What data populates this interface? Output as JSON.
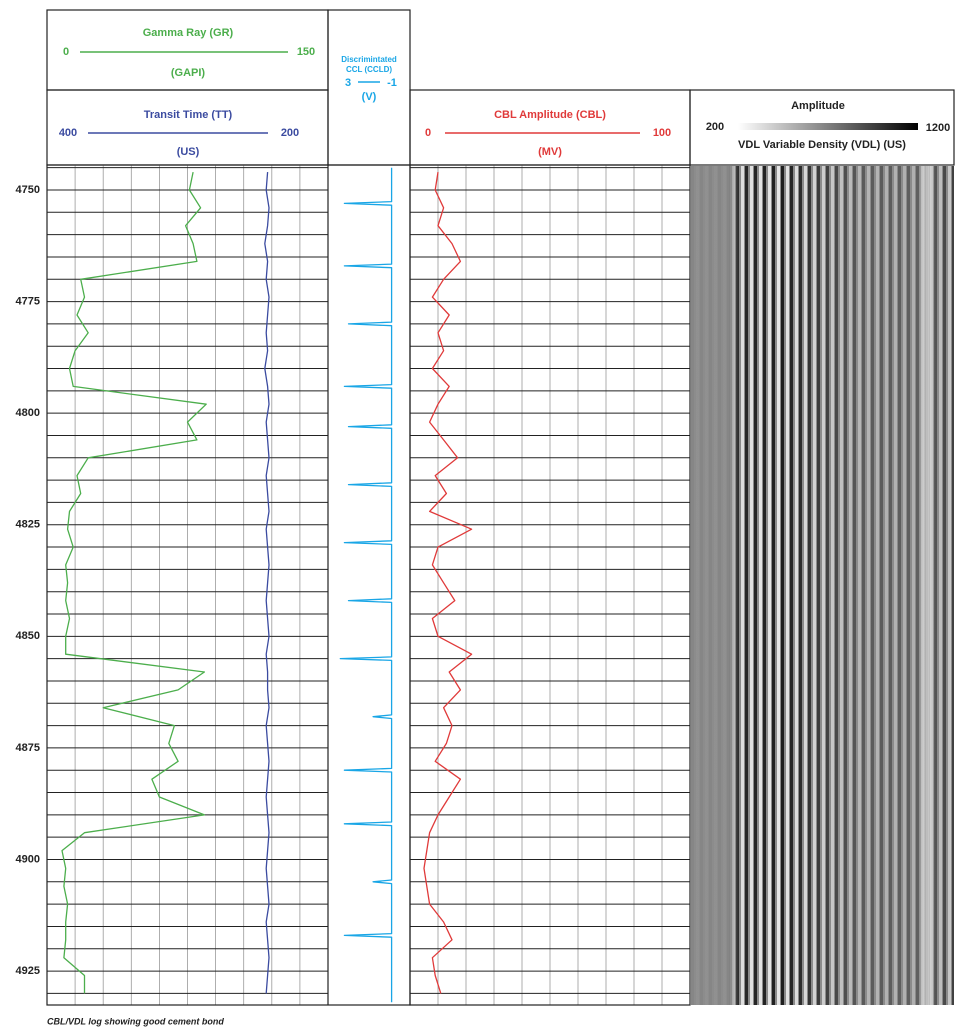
{
  "chart_data": {
    "type": "well_log",
    "caption": "CBL/VDL log showing good cement bond",
    "depth": [
      4746,
      4750,
      4754,
      4758,
      4762,
      4766,
      4770,
      4774,
      4778,
      4782,
      4786,
      4790,
      4794,
      4798,
      4802,
      4806,
      4810,
      4814,
      4818,
      4822,
      4826,
      4830,
      4834,
      4838,
      4842,
      4846,
      4850,
      4854,
      4858,
      4862,
      4866,
      4870,
      4874,
      4878,
      4882,
      4886,
      4890,
      4894,
      4898,
      4902,
      4906,
      4910,
      4914,
      4918,
      4922,
      4926,
      4930
    ],
    "ylim": [
      4744.4,
      4932.6
    ],
    "yticks": [
      4750,
      4775,
      4800,
      4825,
      4850,
      4875,
      4900,
      4925
    ],
    "ygrid": [
      4745,
      4750,
      4755,
      4760,
      4765,
      4770,
      4775,
      4780,
      4785,
      4790,
      4795,
      4800,
      4805,
      4810,
      4815,
      4820,
      4825,
      4830,
      4835,
      4840,
      4845,
      4850,
      4855,
      4860,
      4865,
      4870,
      4875,
      4880,
      4885,
      4890,
      4895,
      4900,
      4905,
      4910,
      4915,
      4920,
      4925,
      4930
    ],
    "tracks": [
      {
        "xticks": [
          0,
          15,
          30,
          45,
          60,
          75,
          90,
          105,
          120,
          135,
          150
        ],
        "curves": [
          {
            "name": "Gamma Ray (GR)",
            "unit": "(GAPI)",
            "color": "#4cae4c",
            "xlim": [
              0,
              150
            ],
            "values": [
              78,
              76,
              82,
              74,
              78,
              80,
              18,
              20,
              16,
              22,
              15,
              12,
              14,
              85,
              75,
              80,
              22,
              16,
              18,
              12,
              11,
              14,
              10,
              11,
              10,
              12,
              10,
              10,
              84,
              70,
              30,
              68,
              65,
              70,
              56,
              60,
              84,
              20,
              8,
              10,
              9,
              11,
              10,
              10,
              9,
              20,
              20
            ]
          },
          {
            "name": "Transit Time (TT)",
            "unit": "(US)",
            "color": "#3b4ba0",
            "xlim": [
              400,
              200
            ],
            "values": [
              243,
              244,
              242,
              243,
              245,
              243,
              244,
              242,
              243,
              244,
              243,
              245,
              243,
              242,
              244,
              243,
              242,
              244,
              243,
              242,
              244,
              243,
              242,
              243,
              244,
              243,
              242,
              244,
              243,
              243,
              242,
              244,
              243,
              242,
              243,
              244,
              243,
              242,
              243,
              244,
              243,
              242,
              244,
              243,
              242,
              243,
              244
            ]
          }
        ]
      },
      {
        "title": "Discrimintated",
        "curves": [
          {
            "name": "CCL (CCLD)",
            "unit": "(V)",
            "color": "#19a6e6",
            "xlim": [
              3,
              -1
            ],
            "depth": [
              4745,
              4752.6,
              4753,
              4753.4,
              4766.6,
              4767,
              4767.4,
              4779.6,
              4780,
              4780.4,
              4793.6,
              4794,
              4794.4,
              4802.6,
              4803,
              4803.4,
              4815.6,
              4816,
              4816.4,
              4828.6,
              4829,
              4829.4,
              4841.6,
              4842,
              4842.4,
              4854.6,
              4855,
              4855.4,
              4867.6,
              4868,
              4868.4,
              4879.6,
              4880,
              4880.4,
              4891.6,
              4892,
              4892.4,
              4904.6,
              4905,
              4905.4,
              4916.6,
              4917,
              4917.4,
              4932
            ],
            "values": [
              -0.1,
              -0.1,
              2.2,
              -0.1,
              -0.1,
              2.2,
              -0.1,
              -0.1,
              2.0,
              -0.1,
              -0.1,
              2.2,
              -0.1,
              -0.1,
              2.0,
              -0.1,
              -0.1,
              2.0,
              -0.1,
              -0.1,
              2.2,
              -0.1,
              -0.1,
              2.0,
              -0.1,
              -0.1,
              2.4,
              -0.1,
              -0.1,
              0.8,
              -0.1,
              -0.1,
              2.2,
              -0.1,
              -0.1,
              2.2,
              -0.1,
              -0.1,
              0.8,
              -0.1,
              -0.1,
              2.2,
              -0.1,
              -0.1
            ]
          }
        ]
      },
      {
        "xticks": [
          0,
          10,
          20,
          30,
          40,
          50,
          60,
          70,
          80,
          90,
          100
        ],
        "curves": [
          {
            "name": "CBL Amplitude (CBL)",
            "unit": "(MV)",
            "color": "#e03a3a",
            "xlim": [
              0,
              100
            ],
            "values": [
              10,
              9,
              12,
              10,
              15,
              18,
              12,
              8,
              14,
              10,
              12,
              8,
              14,
              10,
              7,
              12,
              17,
              9,
              13,
              7,
              22,
              10,
              8,
              12,
              16,
              8,
              10,
              22,
              14,
              18,
              12,
              15,
              13,
              9,
              18,
              14,
              10,
              7,
              6,
              5,
              6,
              7,
              12,
              15,
              8,
              9,
              11
            ]
          }
        ]
      },
      {
        "title": "Amplitude",
        "name": "VDL Variable Density (VDL) (US)",
        "xlim": [
          200,
          1200
        ]
      }
    ]
  }
}
